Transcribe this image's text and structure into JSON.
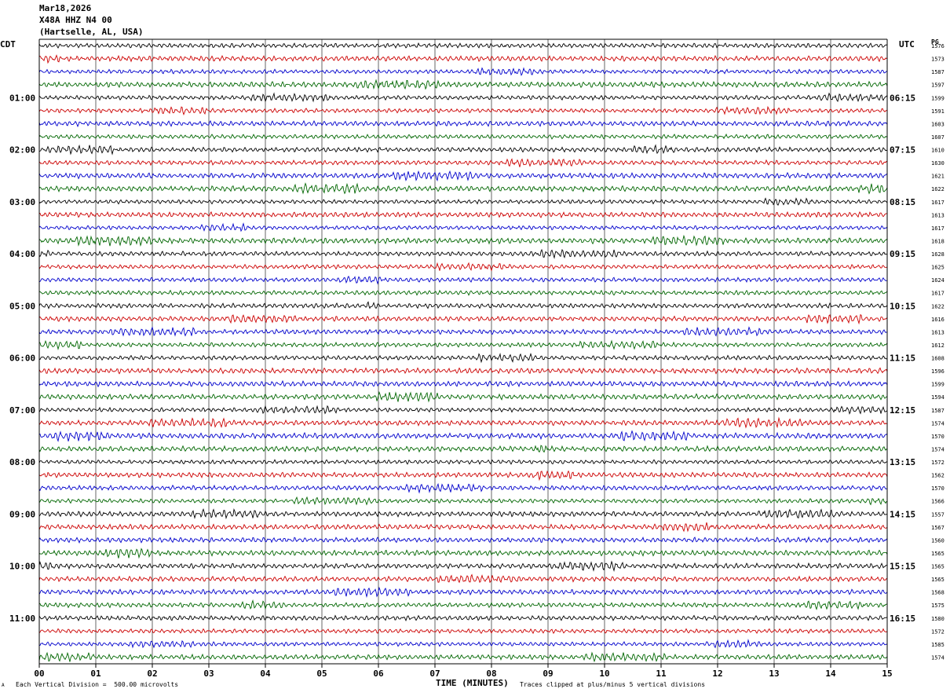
{
  "header": {
    "date": "Mar18,2026",
    "station": "X48A HHZ N4 00",
    "location": "(Hartselle, AL, USA)"
  },
  "left_axis_label": "CDT",
  "right_axis_label": "UTC",
  "right_column_label": "PG",
  "footer": {
    "left_mark": "A",
    "scale_note": "Each Vertical Division =  500.00 microvolts",
    "x_title": "TIME (MINUTES)",
    "clip_note": "Traces clipped at plus/minus 5 vertical divisions"
  },
  "colors": {
    "traces": [
      "#000000",
      "#cc0000",
      "#0000cc",
      "#006600"
    ],
    "grid": "#000000",
    "background": "#ffffff"
  },
  "chart_data": {
    "type": "line",
    "description_type": "helicorder",
    "x_ticks": [
      "00",
      "01",
      "02",
      "03",
      "04",
      "05",
      "06",
      "07",
      "08",
      "09",
      "10",
      "11",
      "12",
      "13",
      "14",
      "15"
    ],
    "xlim": [
      0,
      15
    ],
    "rows_per_hour": 4,
    "left_time_labels": [
      "01:00",
      "02:00",
      "03:00",
      "04:00",
      "05:00",
      "06:00",
      "07:00",
      "08:00",
      "09:00",
      "10:00",
      "11:00"
    ],
    "right_time_labels": [
      "06:15",
      "07:15",
      "08:15",
      "09:15",
      "10:15",
      "11:15",
      "12:15",
      "13:15",
      "14:15",
      "15:15",
      "16:15"
    ],
    "trace_values": [
      1576,
      1573,
      1587,
      1597,
      1599,
      1591,
      1603,
      1607,
      1610,
      1630,
      1621,
      1622,
      1617,
      1613,
      1617,
      1618,
      1628,
      1625,
      1624,
      1617,
      1622,
      1616,
      1613,
      1612,
      1608,
      1596,
      1599,
      1594,
      1587,
      1574,
      1570,
      1574,
      1572,
      1562,
      1570,
      1566,
      1557,
      1567,
      1560,
      1565,
      1565,
      1565,
      1568,
      1575,
      1580,
      1572,
      1585,
      1574
    ]
  }
}
